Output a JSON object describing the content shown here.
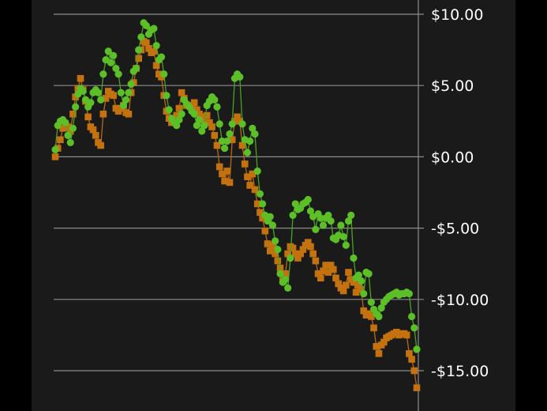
{
  "chart_data": {
    "type": "scatter",
    "title": "",
    "xlabel": "",
    "ylabel": "",
    "ylim": [
      -17,
      11
    ],
    "y_ticks": [
      10,
      5,
      0,
      -5,
      -10,
      -15
    ],
    "y_tick_labels": [
      "$10.00",
      "$5.00",
      "$0.00",
      "-$5.00",
      "-$10.00",
      "-$15.00"
    ],
    "axis_position": "right",
    "grid": true,
    "legend": "none",
    "colors": {
      "background": "#1a1a1a",
      "frame": "#000000",
      "grid": "#8c8c8c",
      "text": "#ffffff"
    },
    "series": [
      {
        "marker": "circle",
        "color": "#5cbf27",
        "line_color": "#4aa321",
        "points": [
          [
            0,
            0.5
          ],
          [
            1,
            2.2
          ],
          [
            2,
            2.5
          ],
          [
            3,
            2.6
          ],
          [
            4,
            2.4
          ],
          [
            5,
            1.5
          ],
          [
            6,
            1.0
          ],
          [
            7,
            2.0
          ],
          [
            8,
            3.5
          ],
          [
            9,
            4.4
          ],
          [
            10,
            4.8
          ],
          [
            11,
            4.6
          ],
          [
            12,
            4.0
          ],
          [
            13,
            3.5
          ],
          [
            14,
            3.8
          ],
          [
            15,
            4.5
          ],
          [
            16,
            4.7
          ],
          [
            17,
            4.5
          ],
          [
            18,
            4.0
          ],
          [
            19,
            5.8
          ],
          [
            20,
            6.8
          ],
          [
            21,
            7.4
          ],
          [
            22,
            6.6
          ],
          [
            23,
            7.1
          ],
          [
            24,
            6.2
          ],
          [
            25,
            5.8
          ],
          [
            26,
            4.5
          ],
          [
            27,
            3.6
          ],
          [
            28,
            4.0
          ],
          [
            29,
            4.5
          ],
          [
            30,
            5.1
          ],
          [
            31,
            6.0
          ],
          [
            32,
            6.2
          ],
          [
            33,
            7.5
          ],
          [
            34,
            8.4
          ],
          [
            35,
            9.4
          ],
          [
            36,
            9.2
          ],
          [
            37,
            8.6
          ],
          [
            38,
            8.9
          ],
          [
            39,
            9.0
          ],
          [
            40,
            7.8
          ],
          [
            41,
            6.8
          ],
          [
            42,
            7.0
          ],
          [
            43,
            5.8
          ],
          [
            44,
            4.3
          ],
          [
            45,
            3.3
          ],
          [
            46,
            2.7
          ],
          [
            47,
            2.4
          ],
          [
            48,
            2.2
          ],
          [
            49,
            2.6
          ],
          [
            50,
            3.0
          ],
          [
            51,
            4.0
          ],
          [
            52,
            3.7
          ],
          [
            53,
            3.5
          ],
          [
            54,
            3.2
          ],
          [
            55,
            3.0
          ],
          [
            56,
            2.2
          ],
          [
            57,
            2.6
          ],
          [
            58,
            1.8
          ],
          [
            59,
            2.2
          ],
          [
            60,
            3.6
          ],
          [
            61,
            3.9
          ],
          [
            62,
            4.2
          ],
          [
            63,
            4.0
          ],
          [
            64,
            3.5
          ],
          [
            65,
            2.3
          ],
          [
            66,
            1.1
          ],
          [
            67,
            0.6
          ],
          [
            68,
            1.1
          ],
          [
            69,
            1.6
          ],
          [
            70,
            2.3
          ],
          [
            71,
            5.5
          ],
          [
            72,
            5.8
          ],
          [
            73,
            5.6
          ],
          [
            74,
            2.3
          ],
          [
            75,
            1.2
          ],
          [
            76,
            0.3
          ],
          [
            77,
            1.1
          ],
          [
            78,
            2.0
          ],
          [
            79,
            1.6
          ],
          [
            80,
            -1.0
          ],
          [
            81,
            -2.6
          ],
          [
            82,
            -3.3
          ],
          [
            83,
            -4.1
          ],
          [
            84,
            -4.5
          ],
          [
            85,
            -4.2
          ],
          [
            86,
            -4.8
          ],
          [
            87,
            -5.9
          ],
          [
            88,
            -6.5
          ],
          [
            89,
            -8.2
          ],
          [
            90,
            -8.8
          ],
          [
            91,
            -8.6
          ],
          [
            92,
            -9.2
          ],
          [
            93,
            -7.1
          ],
          [
            94,
            -4.1
          ],
          [
            95,
            -3.3
          ],
          [
            96,
            -3.7
          ],
          [
            97,
            -3.6
          ],
          [
            98,
            -3.3
          ],
          [
            99,
            -3.2
          ],
          [
            100,
            -3.0
          ],
          [
            101,
            -3.8
          ],
          [
            102,
            -4.2
          ],
          [
            103,
            -5.1
          ],
          [
            104,
            -4.0
          ],
          [
            105,
            -4.3
          ],
          [
            106,
            -4.8
          ],
          [
            107,
            -4.3
          ],
          [
            108,
            -4.1
          ],
          [
            109,
            -4.5
          ],
          [
            110,
            -5.7
          ],
          [
            111,
            -5.8
          ],
          [
            112,
            -5.5
          ],
          [
            113,
            -4.8
          ],
          [
            114,
            -5.6
          ],
          [
            115,
            -6.2
          ],
          [
            116,
            -4.5
          ],
          [
            117,
            -4.1
          ],
          [
            118,
            -7.1
          ],
          [
            119,
            -8.5
          ],
          [
            120,
            -8.3
          ],
          [
            121,
            -8.7
          ],
          [
            122,
            -9.6
          ],
          [
            123,
            -8.1
          ],
          [
            124,
            -8.2
          ],
          [
            125,
            -10.2
          ],
          [
            126,
            -10.7
          ],
          [
            127,
            -11.0
          ],
          [
            128,
            -11.2
          ],
          [
            129,
            -10.6
          ],
          [
            130,
            -10.2
          ],
          [
            131,
            -10.0
          ],
          [
            132,
            -9.8
          ],
          [
            133,
            -9.7
          ],
          [
            134,
            -9.6
          ],
          [
            135,
            -9.5
          ],
          [
            136,
            -9.7
          ],
          [
            137,
            -9.6
          ],
          [
            138,
            -9.6
          ],
          [
            139,
            -9.5
          ],
          [
            140,
            -9.6
          ],
          [
            141,
            -11.2
          ],
          [
            142,
            -12.0
          ],
          [
            143,
            -13.5
          ]
        ]
      },
      {
        "marker": "square",
        "color": "#c4720f",
        "line_color": "#b86a0f",
        "points": [
          [
            0,
            0.0
          ],
          [
            1,
            0.6
          ],
          [
            2,
            1.2
          ],
          [
            3,
            2.0
          ],
          [
            4,
            2.3
          ],
          [
            5,
            2.1
          ],
          [
            6,
            1.8
          ],
          [
            7,
            3.0
          ],
          [
            8,
            4.2
          ],
          [
            9,
            4.8
          ],
          [
            10,
            5.5
          ],
          [
            11,
            4.7
          ],
          [
            12,
            3.9
          ],
          [
            13,
            2.8
          ],
          [
            14,
            2.1
          ],
          [
            15,
            1.9
          ],
          [
            16,
            1.5
          ],
          [
            17,
            1.0
          ],
          [
            18,
            0.8
          ],
          [
            19,
            3.0
          ],
          [
            20,
            4.1
          ],
          [
            21,
            4.6
          ],
          [
            22,
            4.4
          ],
          [
            23,
            4.3
          ],
          [
            24,
            3.4
          ],
          [
            25,
            3.2
          ],
          [
            26,
            3.4
          ],
          [
            27,
            3.6
          ],
          [
            28,
            3.1
          ],
          [
            29,
            3.0
          ],
          [
            30,
            4.5
          ],
          [
            31,
            5.2
          ],
          [
            32,
            6.2
          ],
          [
            33,
            6.9
          ],
          [
            34,
            7.5
          ],
          [
            35,
            8.1
          ],
          [
            36,
            8.0
          ],
          [
            37,
            7.6
          ],
          [
            38,
            7.3
          ],
          [
            39,
            7.4
          ],
          [
            40,
            6.4
          ],
          [
            41,
            5.8
          ],
          [
            42,
            5.6
          ],
          [
            43,
            4.3
          ],
          [
            44,
            3.2
          ],
          [
            45,
            2.7
          ],
          [
            46,
            2.4
          ],
          [
            47,
            2.6
          ],
          [
            48,
            2.9
          ],
          [
            49,
            3.4
          ],
          [
            50,
            4.5
          ],
          [
            51,
            4.1
          ],
          [
            52,
            3.6
          ],
          [
            53,
            3.6
          ],
          [
            54,
            3.5
          ],
          [
            55,
            3.8
          ],
          [
            56,
            3.3
          ],
          [
            57,
            3.0
          ],
          [
            58,
            2.8
          ],
          [
            59,
            2.4
          ],
          [
            60,
            2.9
          ],
          [
            61,
            2.4
          ],
          [
            62,
            2.1
          ],
          [
            63,
            1.5
          ],
          [
            64,
            0.8
          ],
          [
            65,
            -0.7
          ],
          [
            66,
            -1.2
          ],
          [
            67,
            -1.7
          ],
          [
            68,
            -1.0
          ],
          [
            69,
            -1.8
          ],
          [
            70,
            1.2
          ],
          [
            71,
            2.5
          ],
          [
            72,
            2.8
          ],
          [
            73,
            2.5
          ],
          [
            74,
            0.8
          ],
          [
            75,
            -0.5
          ],
          [
            76,
            -1.4
          ],
          [
            77,
            -2.0
          ],
          [
            78,
            -1.2
          ],
          [
            79,
            -2.3
          ],
          [
            80,
            -3.3
          ],
          [
            81,
            -3.9
          ],
          [
            82,
            -4.3
          ],
          [
            83,
            -5.2
          ],
          [
            84,
            -6.1
          ],
          [
            85,
            -6.6
          ],
          [
            86,
            -6.2
          ],
          [
            87,
            -6.8
          ],
          [
            88,
            -7.3
          ],
          [
            89,
            -7.8
          ],
          [
            90,
            -8.7
          ],
          [
            91,
            -8.2
          ],
          [
            92,
            -6.8
          ],
          [
            93,
            -6.3
          ],
          [
            94,
            -6.4
          ],
          [
            95,
            -6.8
          ],
          [
            96,
            -7.1
          ],
          [
            97,
            -6.8
          ],
          [
            98,
            -6.5
          ],
          [
            99,
            -6.2
          ],
          [
            100,
            -6.0
          ],
          [
            101,
            -6.3
          ],
          [
            102,
            -6.8
          ],
          [
            103,
            -7.3
          ],
          [
            104,
            -8.2
          ],
          [
            105,
            -8.5
          ],
          [
            106,
            -8.0
          ],
          [
            107,
            -7.6
          ],
          [
            108,
            -8.1
          ],
          [
            109,
            -7.6
          ],
          [
            110,
            -7.9
          ],
          [
            111,
            -8.5
          ],
          [
            112,
            -8.9
          ],
          [
            113,
            -9.2
          ],
          [
            114,
            -9.4
          ],
          [
            115,
            -9.0
          ],
          [
            116,
            -8.1
          ],
          [
            117,
            -8.6
          ],
          [
            118,
            -8.8
          ],
          [
            119,
            -9.5
          ],
          [
            120,
            -9.0
          ],
          [
            121,
            -9.3
          ],
          [
            122,
            -10.8
          ],
          [
            123,
            -11.1
          ],
          [
            124,
            -11.0
          ],
          [
            125,
            -11.2
          ],
          [
            126,
            -12.0
          ],
          [
            127,
            -13.3
          ],
          [
            128,
            -13.8
          ],
          [
            129,
            -13.2
          ],
          [
            130,
            -13.0
          ],
          [
            131,
            -12.7
          ],
          [
            132,
            -12.6
          ],
          [
            133,
            -12.5
          ],
          [
            134,
            -12.4
          ],
          [
            135,
            -12.3
          ],
          [
            136,
            -12.5
          ],
          [
            137,
            -12.4
          ],
          [
            138,
            -12.4
          ],
          [
            139,
            -12.5
          ],
          [
            140,
            -13.8
          ],
          [
            141,
            -14.2
          ],
          [
            142,
            -15.0
          ],
          [
            143,
            -16.2
          ]
        ]
      }
    ]
  }
}
